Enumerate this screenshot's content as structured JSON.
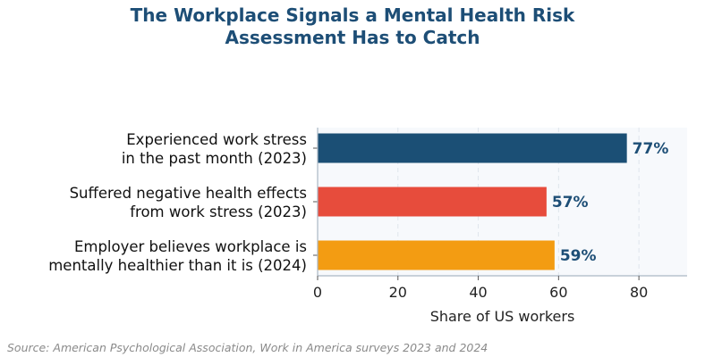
{
  "title_lines": [
    "The Workplace Signals a Mental Health Risk",
    "Assessment Has to Catch"
  ],
  "source": "Source: American Psychological Association, Work in America surveys 2023 and 2024",
  "chart_data": {
    "type": "bar",
    "orientation": "horizontal",
    "title": "The Workplace Signals a Mental Health Risk Assessment Has to Catch",
    "xlabel": "Share of US workers",
    "ylabel": "",
    "xlim": [
      0,
      92
    ],
    "x_ticks": [
      0,
      20,
      40,
      60,
      80
    ],
    "grid": "vertical dashed",
    "categories": [
      [
        "Experienced work stress",
        "in the past month (2023)"
      ],
      [
        "Suffered negative health effects",
        "from work stress (2023)"
      ],
      [
        "Employer believes workplace is",
        "mentally healthier than it is (2024)"
      ]
    ],
    "values": [
      77,
      57,
      59
    ],
    "value_labels": [
      "77%",
      "57%",
      "59%"
    ],
    "colors": [
      "#1b4f75",
      "#e74c3c",
      "#f39c12"
    ],
    "label_color": "#1d4e76",
    "plot_background": "#f7f9fc"
  }
}
